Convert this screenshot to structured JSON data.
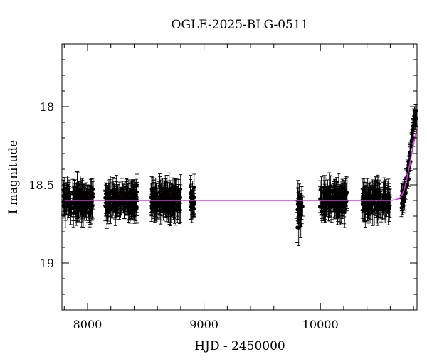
{
  "chart_data": {
    "type": "scatter",
    "title": "OGLE-2025-BLG-0511",
    "xlabel": "HJD - 2450000",
    "ylabel": "I magnitude",
    "xlim": [
      7780,
      10830
    ],
    "ylim": [
      19.3,
      17.6
    ],
    "y_inverted": true,
    "x_ticks": [
      8000,
      9000,
      10000
    ],
    "x_tick_labels": [
      "8000",
      "9000",
      "10000"
    ],
    "y_ticks": [
      18,
      18.5,
      19
    ],
    "y_tick_labels": [
      "18",
      "18.5",
      "19"
    ],
    "grid": false,
    "legend": "none",
    "colors": {
      "points": "#000000",
      "model": "#e030e8",
      "axes": "#000000"
    },
    "baseline_mag": 18.6,
    "observing_seasons": [
      {
        "start": 7790,
        "end": 8050,
        "mean_mag": 18.6,
        "scatter": 0.06,
        "error": 0.08
      },
      {
        "start": 8150,
        "end": 8430,
        "mean_mag": 18.6,
        "scatter": 0.06,
        "error": 0.08
      },
      {
        "start": 8540,
        "end": 8800,
        "mean_mag": 18.6,
        "scatter": 0.06,
        "error": 0.08
      },
      {
        "start": 8880,
        "end": 8920,
        "mean_mag": 18.6,
        "scatter": 0.07,
        "error": 0.08
      },
      {
        "start": 9800,
        "end": 9850,
        "mean_mag": 18.65,
        "scatter": 0.08,
        "error": 0.09
      },
      {
        "start": 9990,
        "end": 10230,
        "mean_mag": 18.6,
        "scatter": 0.06,
        "error": 0.08
      },
      {
        "start": 10360,
        "end": 10600,
        "mean_mag": 18.6,
        "scatter": 0.06,
        "error": 0.08
      }
    ],
    "rising_points": [
      {
        "x": 10700,
        "y": 18.6
      },
      {
        "x": 10712,
        "y": 18.58
      },
      {
        "x": 10724,
        "y": 18.55
      },
      {
        "x": 10736,
        "y": 18.51
      },
      {
        "x": 10748,
        "y": 18.46
      },
      {
        "x": 10760,
        "y": 18.39
      },
      {
        "x": 10772,
        "y": 18.31
      },
      {
        "x": 10784,
        "y": 18.23
      },
      {
        "x": 10796,
        "y": 18.15
      },
      {
        "x": 10808,
        "y": 18.09
      },
      {
        "x": 10820,
        "y": 18.06
      }
    ],
    "model": {
      "name": "",
      "x": [
        7780,
        10600,
        10650,
        10680,
        10700,
        10720,
        10740,
        10760,
        10780,
        10800,
        10815,
        10830
      ],
      "y": [
        18.6,
        18.6,
        18.595,
        18.585,
        18.565,
        18.53,
        18.47,
        18.4,
        18.32,
        18.24,
        18.19,
        18.15
      ]
    }
  }
}
